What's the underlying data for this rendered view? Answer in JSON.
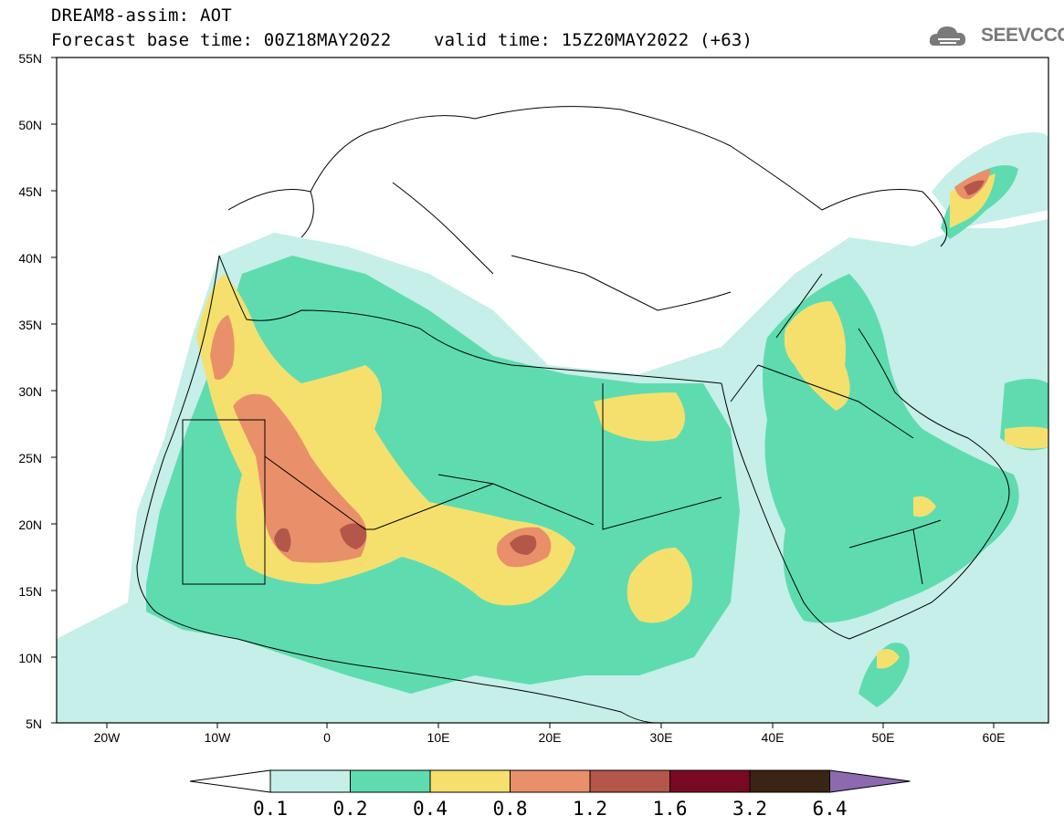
{
  "header": {
    "title_line1": "DREAM8-assim: AOT",
    "title_line2": "Forecast base time: 00Z18MAY2022    valid time: 15Z20MAY2022 (+63)",
    "logo_text": "SEEVCCC"
  },
  "map": {
    "lon_range": [
      -25,
      65
    ],
    "lat_range": [
      5,
      55
    ],
    "lat_ticks": [
      "55N",
      "50N",
      "45N",
      "40N",
      "35N",
      "30N",
      "25N",
      "20N",
      "15N",
      "10N",
      "5N"
    ],
    "lon_ticks": [
      "20W",
      "10W",
      "0",
      "10E",
      "20E",
      "30E",
      "40E",
      "50E",
      "60E"
    ]
  },
  "legend": {
    "labels": [
      "0.1",
      "0.2",
      "0.4",
      "0.8",
      "1.2",
      "1.6",
      "3.2",
      "6.4"
    ],
    "colors": [
      "#ffffff",
      "#c5efe8",
      "#5edcb0",
      "#f5e06e",
      "#e9906a",
      "#b5564a",
      "#7a0a24",
      "#3a2414",
      "#8d6ab0"
    ]
  }
}
